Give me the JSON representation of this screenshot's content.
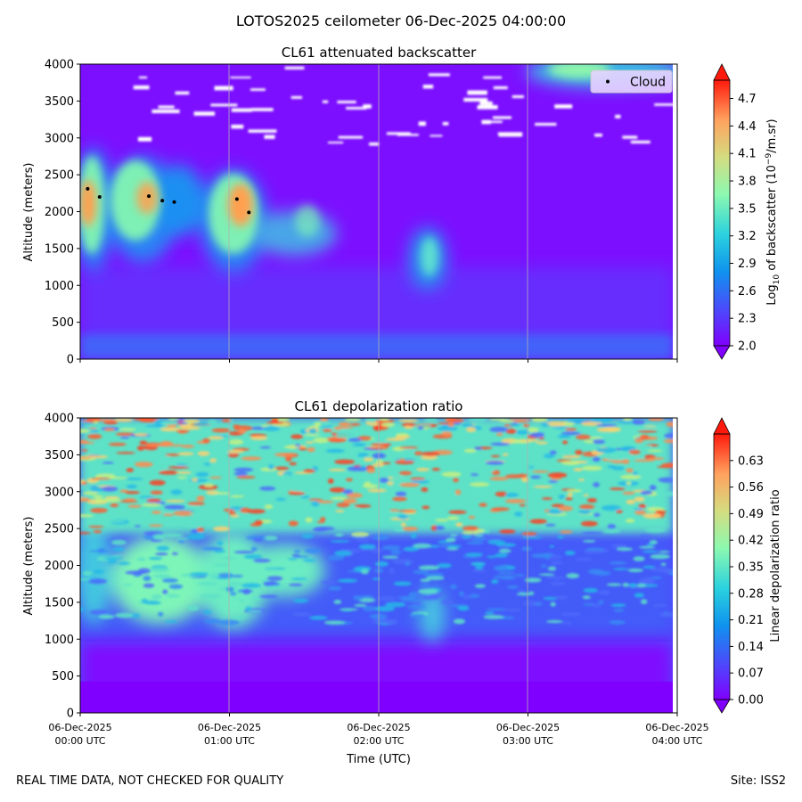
{
  "figure": {
    "title": "LOTOS2025 ceilometer 06-Dec-2025 04:00:00",
    "footer_left": "REAL TIME DATA, NOT CHECKED FOR QUALITY",
    "footer_right": "Site: ISS2"
  },
  "chart_data": [
    {
      "type": "heatmap",
      "title": "CL61 attenuated backscatter",
      "ylabel": "Altitude (meters)",
      "xlabel": "",
      "ylim": [
        0,
        4000
      ],
      "yticks": [
        "0",
        "500",
        "1000",
        "1500",
        "2000",
        "2500",
        "3000",
        "3500",
        "4000"
      ],
      "ytick_values": [
        0,
        500,
        1000,
        1500,
        2000,
        2500,
        3000,
        3500,
        4000
      ],
      "xlim_hours": [
        0,
        4
      ],
      "xtick_values": [
        0,
        1,
        2,
        3,
        4
      ],
      "xticks_shown": false,
      "grid": "vertical",
      "colormap": "rainbow",
      "colorbar": {
        "label": "Log10 of backscatter (10^-9/m.sr)",
        "label_main": "Log",
        "label_sub": "10",
        "label_mid": " of backscatter (10",
        "label_sup": "−9",
        "label_end": "/m.sr)",
        "min": 2.0,
        "max": 4.9,
        "ticks": [
          "2.0",
          "2.3",
          "2.6",
          "2.9",
          "3.2",
          "3.5",
          "3.8",
          "4.1",
          "4.4",
          "4.7"
        ],
        "tick_values": [
          2.0,
          2.3,
          2.6,
          2.9,
          3.2,
          3.5,
          3.8,
          4.1,
          4.4,
          4.7
        ],
        "extend": "both"
      },
      "legend": {
        "label": "Cloud",
        "position": "top-right"
      },
      "cloud_points": [
        {
          "t": 0.05,
          "alt": 2310
        },
        {
          "t": 0.13,
          "alt": 2200
        },
        {
          "t": 0.46,
          "alt": 2210
        },
        {
          "t": 0.55,
          "alt": 2150
        },
        {
          "t": 0.63,
          "alt": 2130
        },
        {
          "t": 1.05,
          "alt": 2170
        },
        {
          "t": 1.13,
          "alt": 1990
        }
      ],
      "features": [
        {
          "t_start": 0.0,
          "t_end": 0.2,
          "alt_bottom": 1100,
          "alt_top": 2700,
          "peak_log10": 4.3
        },
        {
          "t_start": 0.25,
          "t_end": 0.75,
          "alt_bottom": 1300,
          "alt_top": 2700,
          "peak_log10": 4.1
        },
        {
          "t_start": 0.8,
          "t_end": 1.2,
          "alt_bottom": 1050,
          "alt_top": 2450,
          "peak_log10": 4.4
        },
        {
          "t_start": 1.25,
          "t_end": 1.75,
          "alt_bottom": 1400,
          "alt_top": 2150,
          "peak_log10": 3.2
        },
        {
          "t_start": 2.2,
          "t_end": 2.45,
          "alt_bottom": 1100,
          "alt_top": 1750,
          "peak_log10": 3.0
        },
        {
          "t_start": 3.05,
          "t_end": 4.0,
          "alt_bottom": 3700,
          "alt_top": 4000,
          "peak_log10": 3.5
        }
      ]
    },
    {
      "type": "heatmap",
      "title": "CL61 depolarization ratio",
      "ylabel": "Altitude (meters)",
      "xlabel": "Time (UTC)",
      "ylim": [
        0,
        4000
      ],
      "yticks": [
        "0",
        "500",
        "1000",
        "1500",
        "2000",
        "2500",
        "3000",
        "3500",
        "4000"
      ],
      "ytick_values": [
        0,
        500,
        1000,
        1500,
        2000,
        2500,
        3000,
        3500,
        4000
      ],
      "xlim_hours": [
        0,
        4
      ],
      "xtick_values": [
        0,
        1,
        2,
        3,
        4
      ],
      "xticks": [
        [
          "06-Dec-2025",
          "00:00 UTC"
        ],
        [
          "06-Dec-2025",
          "01:00 UTC"
        ],
        [
          "06-Dec-2025",
          "02:00 UTC"
        ],
        [
          "06-Dec-2025",
          "03:00 UTC"
        ],
        [
          "06-Dec-2025",
          "04:00 UTC"
        ]
      ],
      "grid": "vertical",
      "colormap": "rainbow",
      "colorbar": {
        "label": "Linear depolarization ratio",
        "min": 0.0,
        "max": 0.7,
        "ticks": [
          "0.00",
          "0.07",
          "0.14",
          "0.21",
          "0.28",
          "0.35",
          "0.42",
          "0.49",
          "0.56",
          "0.63"
        ],
        "tick_values": [
          0.0,
          0.07,
          0.14,
          0.21,
          0.28,
          0.35,
          0.42,
          0.49,
          0.56,
          0.63
        ],
        "extend": "both"
      },
      "features": [
        {
          "t_start": 0.0,
          "t_end": 1.7,
          "alt_bottom": 1000,
          "alt_top": 2400,
          "typical_ratio": 0.3
        },
        {
          "t_start": 0.0,
          "t_end": 4.0,
          "alt_bottom": 2800,
          "alt_top": 4000,
          "typical_ratio": 0.45
        },
        {
          "t_start": 0.0,
          "t_end": 4.0,
          "alt_bottom": 0,
          "alt_top": 800,
          "typical_ratio": 0.04
        }
      ]
    }
  ]
}
